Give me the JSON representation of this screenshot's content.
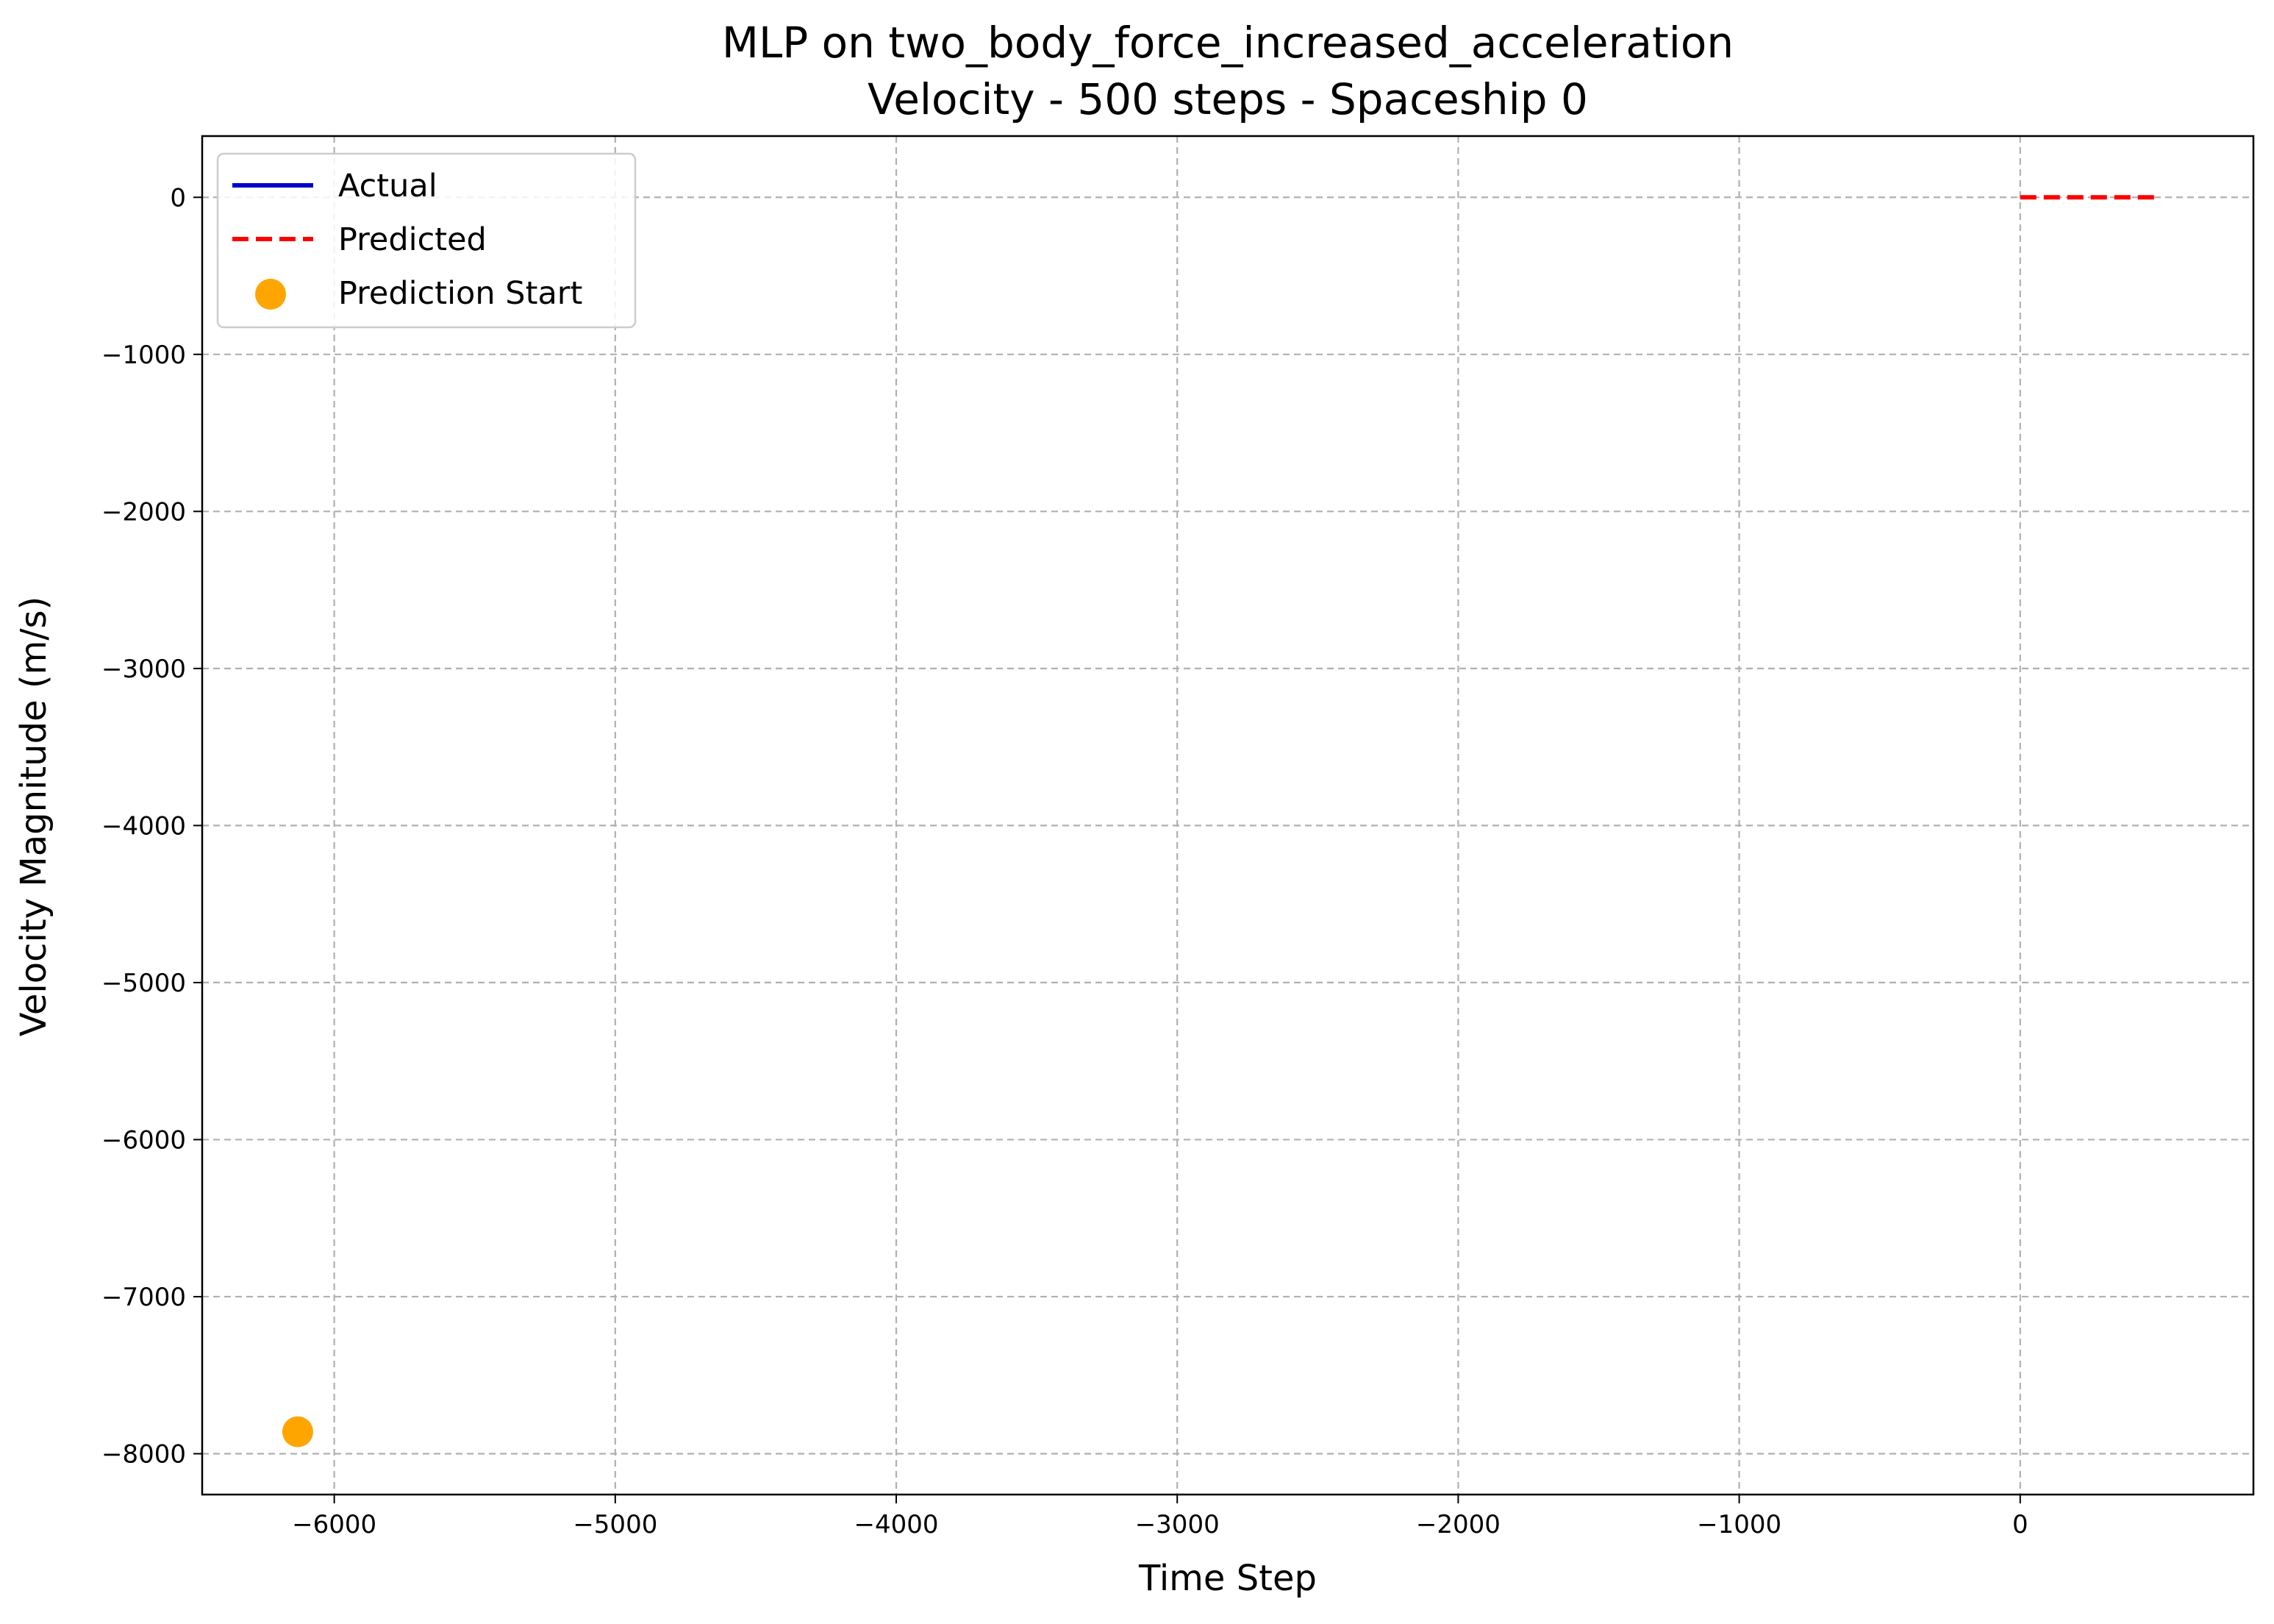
{
  "chart_data": {
    "type": "line",
    "title": "MLP on two_body_force_increased_acceleration",
    "subtitle": "Velocity - 500 steps - Spaceship 0",
    "xlabel": "Time Step",
    "ylabel": "Velocity Magnitude (m/s)",
    "xlim": [
      -6470,
      830
    ],
    "ylim": [
      -8260,
      390
    ],
    "xticks": [
      -6000,
      -5000,
      -4000,
      -3000,
      -2000,
      -1000,
      0
    ],
    "xtick_labels": [
      "−6000",
      "−5000",
      "−4000",
      "−3000",
      "−2000",
      "−1000",
      "0"
    ],
    "yticks": [
      0,
      -1000,
      -2000,
      -3000,
      -4000,
      -5000,
      -6000,
      -7000,
      -8000
    ],
    "ytick_labels": [
      "0",
      "−1000",
      "−2000",
      "−3000",
      "−4000",
      "−5000",
      "−6000",
      "−7000",
      "−8000"
    ],
    "grid": true,
    "legend_position": "top-left",
    "series": [
      {
        "name": "Actual",
        "kind": "line",
        "style": "solid",
        "color": "#0000cc",
        "x": [],
        "y": []
      },
      {
        "name": "Predicted",
        "kind": "line",
        "style": "dashed",
        "color": "#ff0000",
        "x": [
          0,
          100,
          200,
          300,
          400,
          500
        ],
        "y": [
          0,
          0,
          0,
          0,
          0,
          0
        ]
      },
      {
        "name": "Prediction Start",
        "kind": "scatter",
        "color": "#ffa500",
        "x": [
          -6130
        ],
        "y": [
          -7860
        ]
      }
    ]
  }
}
